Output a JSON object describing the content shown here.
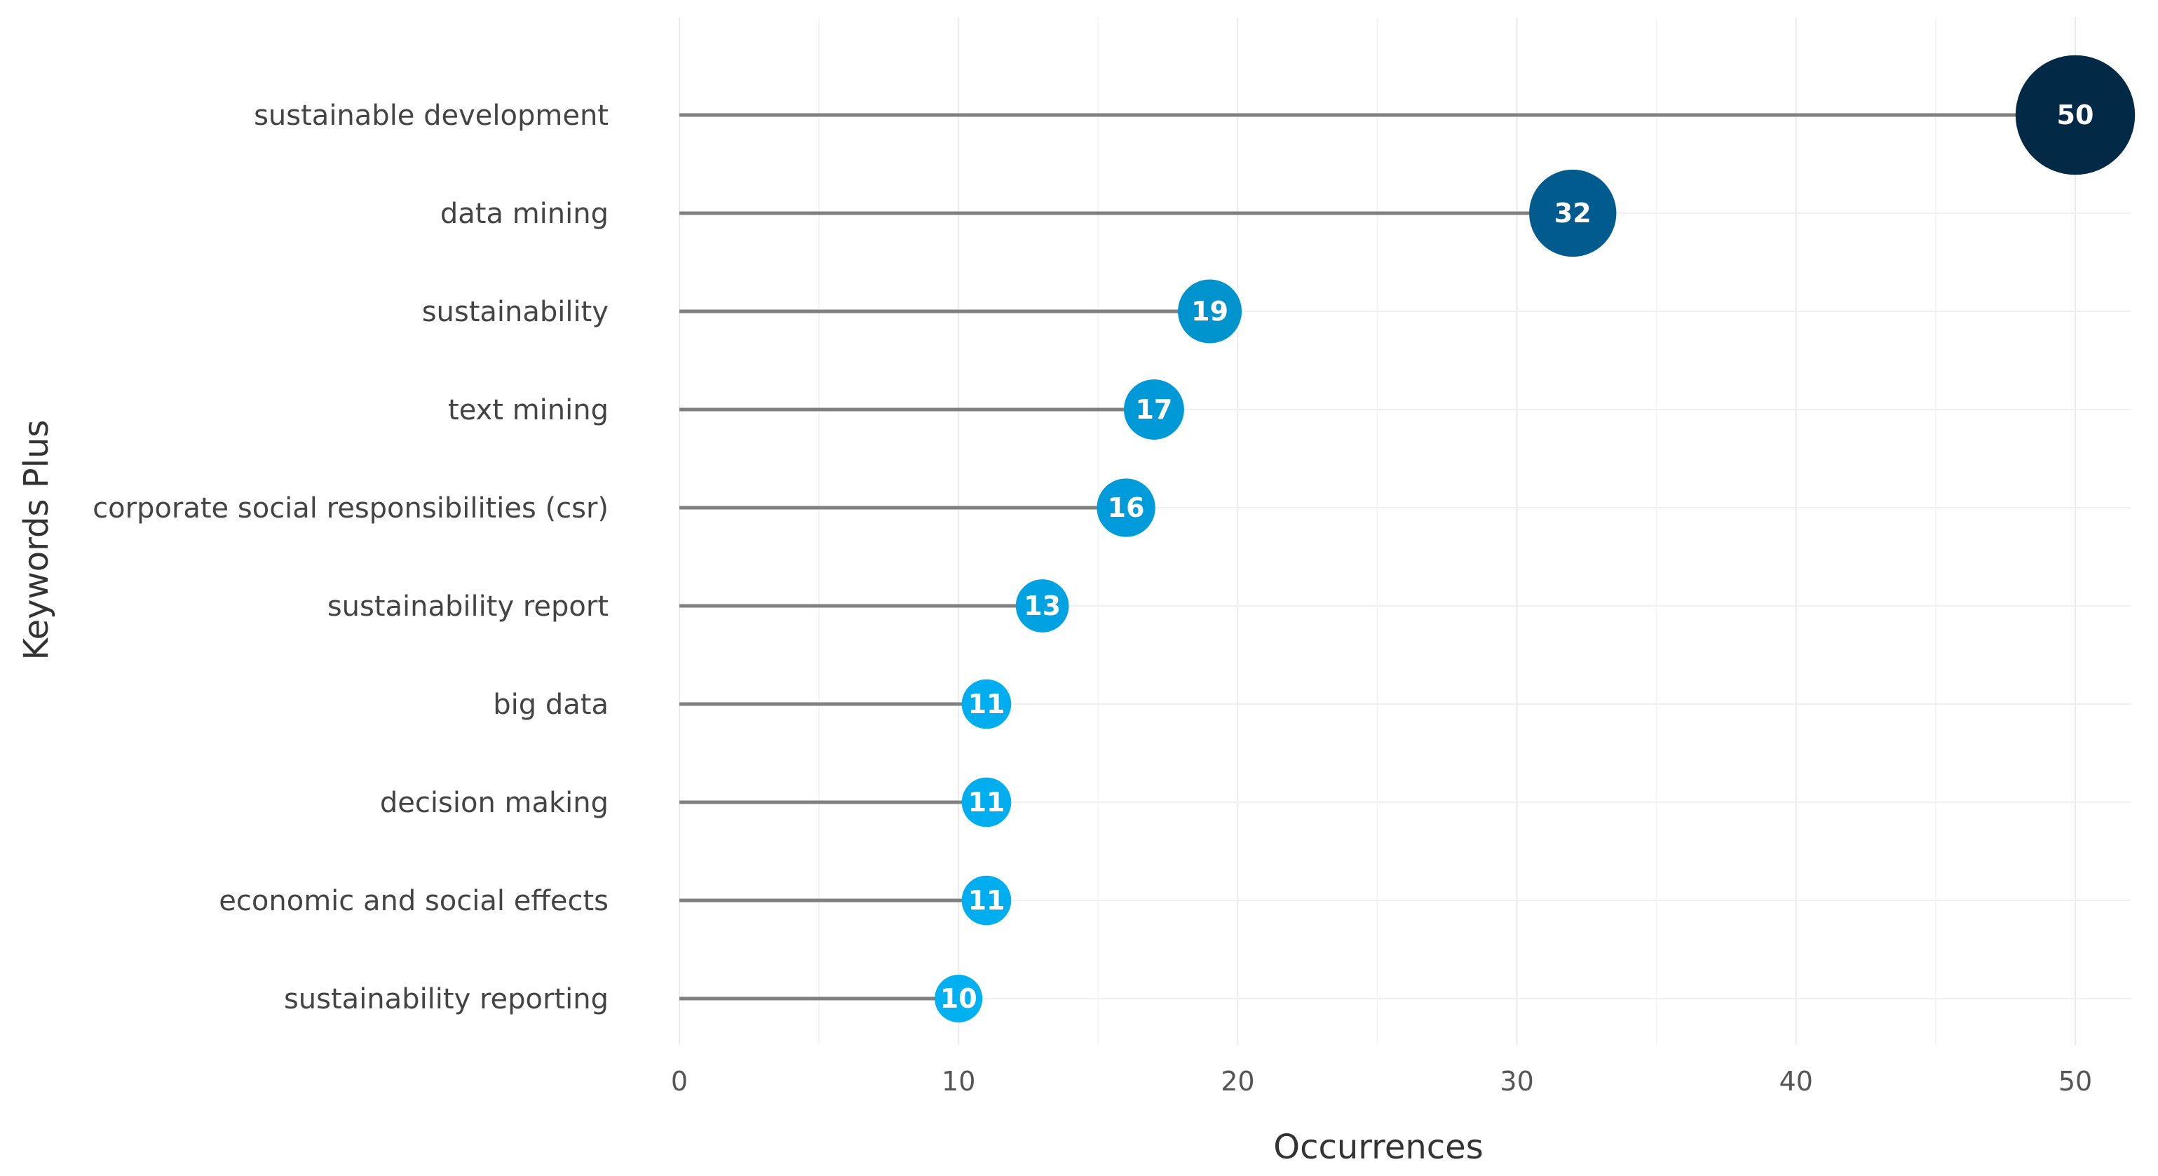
{
  "chart_data": {
    "type": "lollipop",
    "xlabel": "Occurrences",
    "ylabel": "Keywords Plus",
    "xlim": [
      0,
      52
    ],
    "xticks": [
      0,
      10,
      20,
      30,
      40,
      50
    ],
    "grid": true,
    "categories": [
      "sustainable development",
      "data mining",
      "sustainability",
      "text mining",
      "corporate social responsibilities (csr)",
      "sustainability report",
      "big data",
      "decision making",
      "economic and social effects",
      "sustainability reporting"
    ],
    "values": [
      50,
      32,
      19,
      17,
      16,
      13,
      11,
      11,
      11,
      10
    ],
    "colors": [
      "#022a47",
      "#005b8f",
      "#0094cf",
      "#0099d8",
      "#009bda",
      "#00a2e2",
      "#00adef",
      "#00adef",
      "#00adef",
      "#00b0f0"
    ],
    "stem_color": "#808080",
    "label_color": "#ffffff"
  }
}
